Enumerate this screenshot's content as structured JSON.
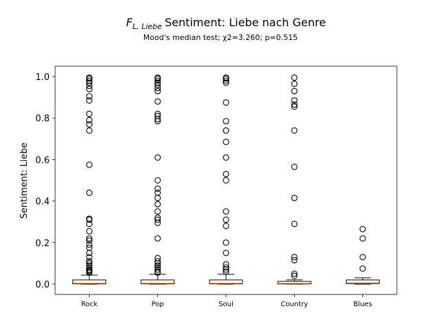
{
  "chart_data": {
    "type": "box",
    "title": "Sentiment: Liebe nach Genre",
    "title_prefix": "F",
    "title_prefix_sub": "L, Liebe",
    "subtitle": "Mood's median test; χ2=3.260; p=0.515",
    "xlabel": "",
    "ylabel": "Sentiment: Liebe",
    "ylim": [
      -0.05,
      1.05
    ],
    "yticks": [
      0.0,
      0.2,
      0.4,
      0.6,
      0.8,
      1.0
    ],
    "ytick_labels": [
      "0.0",
      "0.2",
      "0.4",
      "0.6",
      "0.8",
      "1.0"
    ],
    "grid": false,
    "legend": "none",
    "colors": {
      "box": "#000000",
      "median": "#ff7f0e"
    },
    "categories": [
      "Rock",
      "Pop",
      "Soul",
      "Country",
      "Blues"
    ],
    "boxes": [
      {
        "category": "Rock",
        "whisker_low": 0.0,
        "q1": 0.001,
        "median": 0.004,
        "q3": 0.02,
        "whisker_high": 0.043,
        "outliers": [
          0.055,
          0.06,
          0.065,
          0.07,
          0.08,
          0.09,
          0.1,
          0.11,
          0.13,
          0.15,
          0.175,
          0.19,
          0.21,
          0.22,
          0.255,
          0.29,
          0.31,
          0.315,
          0.44,
          0.575,
          0.74,
          0.77,
          0.79,
          0.82,
          0.885,
          0.905,
          0.94,
          0.955,
          0.97,
          0.98,
          0.99,
          0.995
        ]
      },
      {
        "category": "Pop",
        "whisker_low": 0.0,
        "q1": 0.001,
        "median": 0.004,
        "q3": 0.02,
        "whisker_high": 0.047,
        "outliers": [
          0.055,
          0.06,
          0.07,
          0.08,
          0.09,
          0.1,
          0.11,
          0.125,
          0.22,
          0.295,
          0.31,
          0.32,
          0.35,
          0.385,
          0.415,
          0.44,
          0.46,
          0.5,
          0.61,
          0.785,
          0.795,
          0.81,
          0.82,
          0.88,
          0.93,
          0.945,
          0.96,
          0.97,
          0.98,
          0.99,
          0.995
        ]
      },
      {
        "category": "Soul",
        "whisker_low": 0.0,
        "q1": 0.001,
        "median": 0.004,
        "q3": 0.02,
        "whisker_high": 0.047,
        "outliers": [
          0.06,
          0.07,
          0.08,
          0.095,
          0.15,
          0.2,
          0.28,
          0.31,
          0.35,
          0.5,
          0.53,
          0.61,
          0.685,
          0.74,
          0.785,
          0.875,
          0.97,
          0.98,
          0.99,
          0.995
        ]
      },
      {
        "category": "Country",
        "whisker_low": 0.0,
        "q1": 0.0005,
        "median": 0.003,
        "q3": 0.013,
        "whisker_high": 0.02,
        "outliers": [
          0.04,
          0.05,
          0.115,
          0.13,
          0.29,
          0.415,
          0.565,
          0.74,
          0.855,
          0.865,
          0.885,
          0.93,
          0.965,
          0.995
        ]
      },
      {
        "category": "Blues",
        "whisker_low": 0.0,
        "q1": 0.002,
        "median": 0.007,
        "q3": 0.02,
        "whisker_high": 0.03,
        "outliers": [
          0.075,
          0.13,
          0.22,
          0.265
        ]
      }
    ]
  }
}
